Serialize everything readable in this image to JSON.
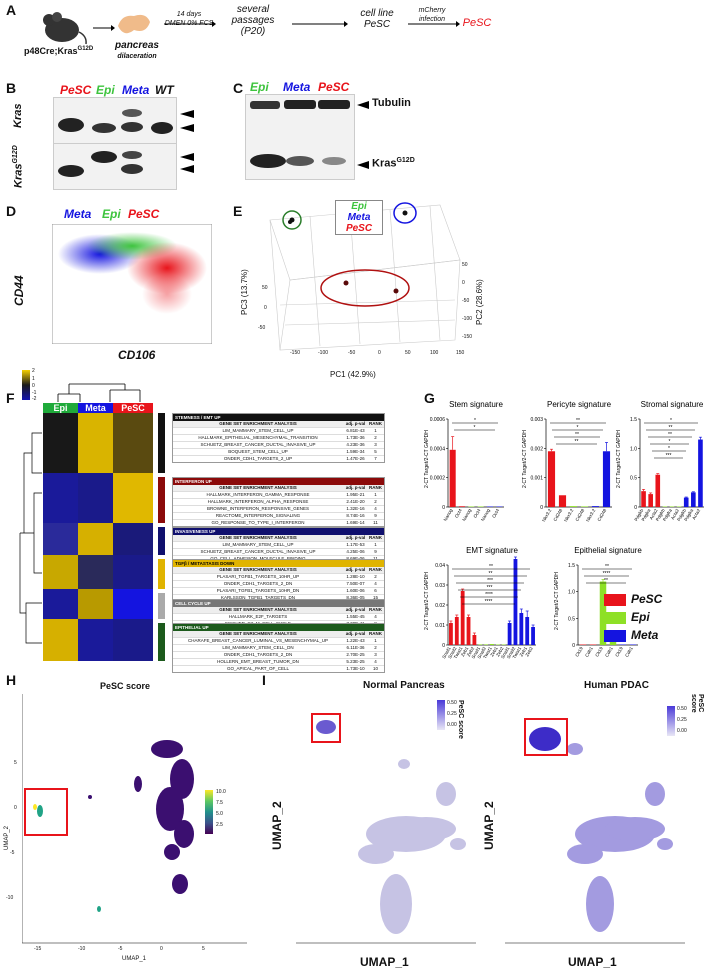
{
  "panels": [
    "A",
    "B",
    "C",
    "D",
    "E",
    "F",
    "G",
    "H",
    "I"
  ],
  "panel_a": {
    "mouse": "p48Cre;Kras",
    "mouse_sup": "G12D",
    "organ": "pancreas",
    "organ_sub": "dilaceration",
    "step1_top": "14 days",
    "step1_bottom": "DMEN 0% FCS",
    "step2": "several passages (P20)",
    "step3": "cell line PeSC",
    "step4_top": "mCherry",
    "step4_bottom": "infection",
    "final": "PeSC"
  },
  "panel_b": {
    "lanes": [
      "PeSC",
      "Epi",
      "Meta",
      "WT"
    ],
    "row1": "Kras",
    "row2": "Kras",
    "row2_sup": "G12D"
  },
  "panel_c": {
    "lanes": [
      "Epi",
      "Meta",
      "PeSC"
    ],
    "band1": "Tubulin",
    "band2": "Kras",
    "band2_sup": "G12D"
  },
  "panel_d": {
    "legend": [
      "Meta",
      "Epi",
      "PeSC"
    ],
    "ylabel": "CD44",
    "xlabel": "CD106"
  },
  "panel_e": {
    "legend": [
      "Epi",
      "Meta",
      "PeSC"
    ],
    "pc1": "PC1 (42.9%)",
    "pc2": "PC2 (28.6%)",
    "pc3": "PC3 (13.7%)",
    "pc1_ticks": [
      "-150",
      "-100",
      "-50",
      "0",
      "50",
      "100",
      "150"
    ],
    "pc3_ticks": [
      "50",
      "0",
      "-50"
    ],
    "pc2_ticks": [
      "50",
      "0",
      "-50",
      "-100",
      "-150"
    ]
  },
  "panel_f": {
    "scale": [
      "2",
      "1",
      "0",
      "-1",
      "-2"
    ],
    "groups": [
      "Epi",
      "Meta",
      "PeSC"
    ],
    "tables": [
      {
        "title": "STEMNESS / EMT UP",
        "color": "#111111",
        "rows": [
          [
            "LIM_MAMMARY_STEM_CELL_UP",
            "6.81E-43",
            "1"
          ],
          [
            "HALLMARK_EPITHELIAL_MESENCHYMAL_TRANSITION",
            "1.73E-36",
            "2"
          ],
          [
            "SCHUETZ_BREAST_CANCER_DUCTAL_INVASIVE_UP",
            "4.23E-36",
            "3"
          ],
          [
            "BOQUEST_STEM_CELL_UP",
            "1.59E-34",
            "5"
          ],
          [
            "ONDER_CDH1_TARGETS_2_UP",
            "1.47E-26",
            "7"
          ]
        ]
      },
      {
        "title": "INTERFERON UP",
        "color": "#8b0a0a",
        "rows": [
          [
            "HALLMARK_INTERFERON_GAMMA_RESPONSE",
            "1.95E-21",
            "1"
          ],
          [
            "HALLMARK_INTERFERON_ALPHA_RESPONSE",
            "2.41E-20",
            "2"
          ],
          [
            "BROWNE_INTERFERON_RESPONSIVE_GENES",
            "1.32E-16",
            "4"
          ],
          [
            "REACTOME_INTERFERON_SIGNALING",
            "8.74E-16",
            "9"
          ],
          [
            "GO_RESPONSE_TO_TYPE_I_INTERFERON",
            "1.69E-14",
            "11"
          ]
        ]
      },
      {
        "title": "INVASIVENESS UP",
        "color": "#10106e",
        "rows": [
          [
            "LIM_MAMMARY_STEM_CELL_UP",
            "1.17E-53",
            "1"
          ],
          [
            "SCHUETZ_BREAST_CANCER_DUCTAL_INVASIVE_UP",
            "4.25E-06",
            "9"
          ],
          [
            "GO_CELL_ADHESION_MOLECULE_BINDING",
            "8.69E-06",
            "11"
          ],
          [
            "CHARAFE_BREAST_CANCER_LUMINAL_VS_BASAL_DN",
            "1.30E-05",
            "13"
          ],
          [
            "LIM_MAMMARY_STEM_CELL_UP",
            "6.26E-05",
            "15"
          ]
        ]
      },
      {
        "title": "TGFβ / METASTASIS DOWN",
        "color": "#e0b400",
        "rows": [
          [
            "PLASARI_TGFB1_TARGETS_10HR_UP",
            "1.28E-10",
            "2"
          ],
          [
            "ONDER_CDH1_TARGETS_2_DN",
            "7.50E-07",
            "4"
          ],
          [
            "PLASARI_TGFB1_TARGETS_10HR_DN",
            "1.60E-06",
            "6"
          ],
          [
            "KARLSSON_TGFB1_TARGETS_DN",
            "8.36E-05",
            "15"
          ],
          [
            "VANHARANTA_UTERINE_FIBROID_DN",
            "1.41E-04",
            "16"
          ],
          [
            "JAEGER_METASTASIS_DN",
            "6.21E-04",
            "20"
          ]
        ]
      },
      {
        "title": "CELL CYCLE UP",
        "color": "#777777",
        "rows": [
          [
            "HALLMARK_E2F_TARGETS",
            "1.55E-45",
            "4"
          ],
          [
            "FISCHER_G2_M_CELL_CYCLE",
            "7.30E-41",
            "8"
          ],
          [
            "ROSTY_CERVICAL_CANCER_PROLIFERATION_CLUSTER",
            "1.48E-35",
            "7"
          ],
          [
            "ZHOU_CELL_CYCLE_GENES_IN_IR_RESPONSE_24HR",
            "1.41E-34",
            "14"
          ],
          [
            "KONG_E2F3_TARGETS",
            "1.55E-33",
            "16"
          ]
        ]
      },
      {
        "title": "EPITHELIAL UP",
        "color": "#1c5a1c",
        "rows": [
          [
            "CHARAFE_BREAST_CANCER_LUMINAL_VS_MESENCHYMAL_UP",
            "1.22E-43",
            "1"
          ],
          [
            "LIM_MAMMARY_STEM_CELL_DN",
            "6.11E-36",
            "2"
          ],
          [
            "ONDER_CDH1_TARGETS_2_DN",
            "2.70E-25",
            "3"
          ],
          [
            "HOLLERN_EMT_BREAST_TUMOR_DN",
            "5.23E-25",
            "4"
          ],
          [
            "GO_APICAL_PART_OF_CELL",
            "1.73E-10",
            "10"
          ]
        ]
      }
    ],
    "table_headers": [
      "GENE SET ENRICHMENT ANALYSIS",
      "adj. p-val",
      "RANK"
    ]
  },
  "panel_g": {
    "ylabel": "2",
    "ylabel_rest": "-CT Target",
    "ylabel_den": "/2",
    "ylabel_den_rest": "-CT GAPDH",
    "legend": [
      {
        "name": "PeSC",
        "color": "#e8141b"
      },
      {
        "name": "Epi",
        "color": "#8ee026"
      },
      {
        "name": "Meta",
        "color": "#1414e0"
      }
    ]
  },
  "chart_data": [
    {
      "type": "bar",
      "title": "Stem signature",
      "categories": [
        "Nanog",
        "Oct4",
        "Nanog",
        "Oct4",
        "Nanog",
        "Oct4"
      ],
      "groups": [
        "PeSC",
        "PeSC",
        "Epi",
        "Epi",
        "Meta",
        "Meta"
      ],
      "values": [
        0.00039,
        5e-06,
        3e-06,
        2e-06,
        1e-06,
        2e-06
      ],
      "errors": [
        9e-05,
        0,
        0,
        0,
        0,
        0
      ],
      "ylim": [
        0,
        0.0006
      ],
      "yticks": [
        "0",
        "0.0002",
        "0.0004",
        "0.0006"
      ],
      "sig": [
        "*",
        "*"
      ]
    },
    {
      "type": "bar",
      "title": "Pericyte signature",
      "categories": [
        "Nkx3.2",
        "Cd248",
        "Nkx3.2",
        "Cd248",
        "Nkx3.2",
        "Cd248"
      ],
      "groups": [
        "PeSC",
        "PeSC",
        "Epi",
        "Epi",
        "Meta",
        "Meta"
      ],
      "values": [
        0.0019,
        0.0004,
        3e-05,
        2e-05,
        3e-05,
        0.0019
      ],
      "errors": [
        7e-05,
        0,
        0,
        0,
        0,
        0.0003
      ],
      "ylim": [
        0,
        0.003
      ],
      "yticks": [
        "0",
        "0.001",
        "0.002",
        "0.003"
      ],
      "sig": [
        "**",
        "*",
        "**",
        "**"
      ]
    },
    {
      "type": "bar",
      "title": "Stromal signature",
      "categories": [
        "Pdgfrb",
        "Pdgfra",
        "Acta2",
        "Pdgfrb",
        "Pdgfra",
        "Acta2",
        "Pdgfrb",
        "Pdgfra",
        "Acta2"
      ],
      "groups": [
        "PeSC",
        "PeSC",
        "PeSC",
        "Epi",
        "Epi",
        "Epi",
        "Meta",
        "Meta",
        "Meta"
      ],
      "values": [
        0.27,
        0.22,
        0.55,
        0.005,
        0.005,
        0.005,
        0.16,
        0.25,
        1.15
      ],
      "errors": [
        0.03,
        0.02,
        0.02,
        0,
        0,
        0,
        0.01,
        0.01,
        0.04
      ],
      "ylim": [
        0,
        1.5
      ],
      "yticks": [
        "0",
        "0.5",
        "1.0",
        "1.5"
      ],
      "sig": [
        "*",
        "**",
        "**",
        "*",
        "*",
        "***"
      ]
    },
    {
      "type": "bar",
      "title": "EMT signature",
      "categories": [
        "Snail1",
        "Snail2",
        "Twist1",
        "Zeb1",
        "Zeb2",
        "Snail1",
        "Snail2",
        "Twist1",
        "Zeb1",
        "Zeb2",
        "Snail1",
        "Snail2",
        "Twist1",
        "Zeb1",
        "Zeb2"
      ],
      "groups": [
        "PeSC",
        "PeSC",
        "PeSC",
        "PeSC",
        "PeSC",
        "Epi",
        "Epi",
        "Epi",
        "Epi",
        "Epi",
        "Meta",
        "Meta",
        "Meta",
        "Meta",
        "Meta"
      ],
      "values": [
        0.011,
        0.014,
        0.027,
        0.014,
        0.005,
        0.0003,
        0.0003,
        0.0005,
        0.0002,
        0.0002,
        0.011,
        0.043,
        0.016,
        0.014,
        0.009
      ],
      "errors": [
        0.001,
        0.001,
        0.001,
        0.001,
        0.001,
        0,
        0,
        0,
        0,
        0,
        0.001,
        0.001,
        0.002,
        0.003,
        0.001
      ],
      "ylim": [
        0,
        0.04
      ],
      "yticks": [
        "0",
        "0.01",
        "0.02",
        "0.03",
        "0.04"
      ],
      "sig": [
        "**",
        "**",
        "***",
        "***",
        "****",
        "****"
      ]
    },
    {
      "type": "bar",
      "title": "Epithelial signature",
      "categories": [
        "Ck19",
        "Cdh1",
        "Ck19",
        "Cdh1",
        "Ck19",
        "Cdh1"
      ],
      "groups": [
        "PeSC",
        "PeSC",
        "Epi",
        "Epi",
        "Meta",
        "Meta"
      ],
      "values": [
        0.003,
        0.002,
        1.19,
        0.08,
        0.002,
        0.001
      ],
      "errors": [
        0,
        0,
        0.04,
        0.01,
        0,
        0
      ],
      "ylim": [
        0,
        1.5
      ],
      "yticks": [
        "0",
        "0.5",
        "1.0",
        "1.5"
      ],
      "sig": [
        "**",
        "****",
        "**"
      ]
    }
  ],
  "panel_h": {
    "title": "PeSC score",
    "xlabel": "UMAP_1",
    "ylabel": "UMAP_2",
    "scale": [
      "10.0",
      "7.5",
      "5.0",
      "2.5"
    ],
    "xticks": [
      "-15",
      "-10",
      "-5",
      "0",
      "5"
    ],
    "yticks": [
      "5",
      "0",
      "-5",
      "-10"
    ]
  },
  "panel_i": {
    "left_title": "Normal Pancreas",
    "right_title": "Human PDAC",
    "xlabel": "UMAP_1",
    "ylabel": "UMAP_2",
    "legend_title": "PeSC score",
    "scale_left": [
      "0.50",
      "0.25",
      "0.00"
    ],
    "scale_right": [
      "0.50",
      "0.25",
      "0.00"
    ]
  }
}
